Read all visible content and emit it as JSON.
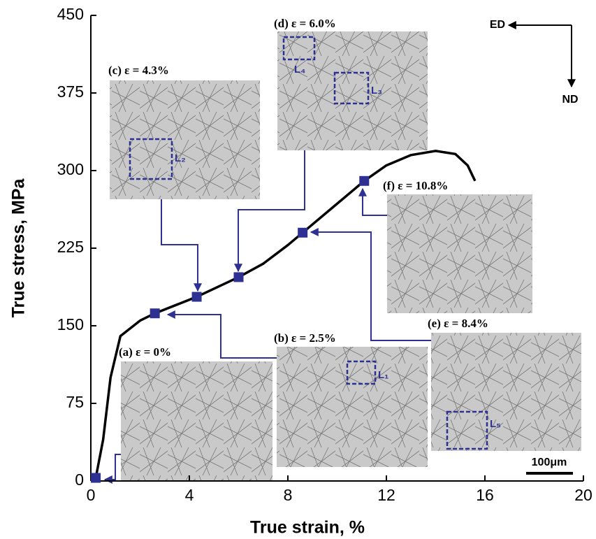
{
  "chart_data": {
    "type": "line",
    "xlabel": "True strain, %",
    "ylabel": "True stress, MPa",
    "x": [
      0,
      0.2,
      0.5,
      0.8,
      1.2,
      2,
      2.6,
      4.3,
      6,
      7,
      8,
      8.6,
      10,
      11.1,
      12,
      13,
      14,
      14.8,
      15.3,
      15.6
    ],
    "values": [
      0,
      3,
      40,
      100,
      140,
      155,
      162,
      178,
      197,
      210,
      228,
      240,
      268,
      290,
      305,
      315,
      319,
      316,
      305,
      290
    ],
    "color": "#000000",
    "points": {
      "x": [
        0.2,
        2.6,
        4.3,
        6,
        8.6,
        11.1
      ],
      "values": [
        3,
        162,
        178,
        197,
        240,
        290
      ],
      "color": "#2e3192"
    },
    "xlim": [
      0,
      20
    ],
    "xticks": [
      0,
      4,
      8,
      12,
      16,
      20
    ],
    "ylim": [
      0,
      450
    ],
    "yticks": [
      0,
      75,
      150,
      225,
      300,
      375,
      450
    ],
    "annotations": [
      "(a) ε = 0%",
      "(b) ε = 2.5%",
      "(c) ε = 4.3%",
      "(d) ε = 6.0%",
      "(e) ε = 8.4%",
      "(f) ε = 10.8%"
    ],
    "regions": [
      "L₁",
      "L₂",
      "L₃",
      "L₄",
      "L₅"
    ],
    "directions": [
      "ED",
      "ND"
    ],
    "scale_bar": "100μm"
  }
}
